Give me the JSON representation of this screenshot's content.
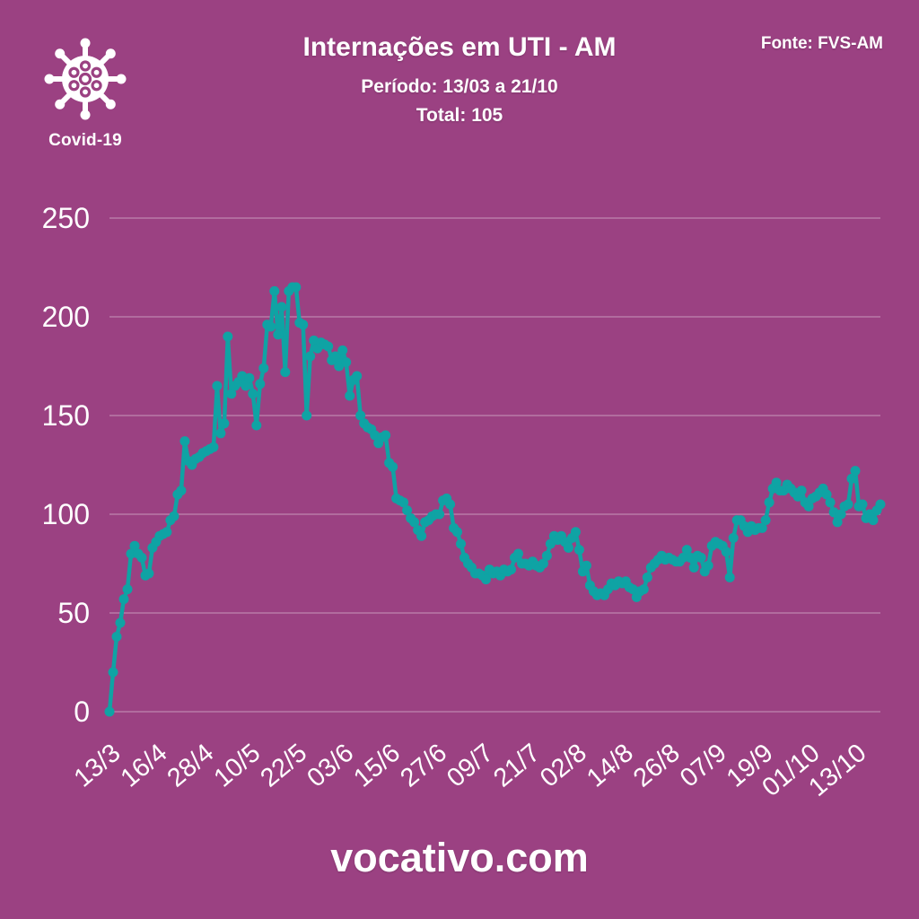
{
  "colors": {
    "background": "#9B4182",
    "line": "#0FA3A4",
    "grid": "rgba(255,255,255,0.3)",
    "text": "#FFFFFF"
  },
  "header": {
    "badge_label": "Covid-19",
    "title": "Internações em UTI - AM",
    "period": "Período: 13/03 a 21/10",
    "total": "Total: 105",
    "source": "Fonte: FVS-AM"
  },
  "footer": {
    "site": "vocativo.com"
  },
  "chart_data": {
    "type": "line",
    "title": "Internações em UTI - AM",
    "subtitle": "Período: 13/03 a 21/10",
    "total_label": "Total: 105",
    "source": "Fonte: FVS-AM",
    "series_name": "Internações em UTI - AM (diário)",
    "grid": true,
    "legend_position": "none",
    "ylim": [
      0,
      250
    ],
    "yticks": [
      0,
      50,
      100,
      150,
      200,
      250
    ],
    "x_tick_labels": [
      "13/3",
      "16/4",
      "28/4",
      "10/5",
      "22/5",
      "03/6",
      "15/6",
      "27/6",
      "09/7",
      "21/7",
      "02/8",
      "14/8",
      "26/8",
      "07/9",
      "19/9",
      "01/10",
      "13/10"
    ],
    "tick_interval_points": 13,
    "line_color": "#0FA3A4",
    "marker": "circle",
    "last_value": 105,
    "values": [
      0,
      20,
      38,
      45,
      57,
      62,
      80,
      84,
      80,
      78,
      69,
      70,
      83,
      86,
      89,
      90,
      91,
      97,
      99,
      110,
      112,
      137,
      127,
      125,
      128,
      129,
      131,
      132,
      133,
      134,
      165,
      141,
      146,
      190,
      161,
      165,
      167,
      170,
      165,
      169,
      161,
      145,
      166,
      174,
      196,
      195,
      213,
      191,
      205,
      172,
      213,
      215,
      215,
      197,
      196,
      150,
      180,
      188,
      184,
      187,
      186,
      185,
      178,
      180,
      175,
      183,
      177,
      160,
      168,
      170,
      150,
      146,
      144,
      143,
      140,
      136,
      139,
      140,
      126,
      124,
      108,
      107,
      106,
      102,
      98,
      96,
      92,
      89,
      96,
      97,
      99,
      100,
      100,
      107,
      108,
      105,
      93,
      91,
      85,
      78,
      75,
      73,
      70,
      70,
      69,
      67,
      72,
      70,
      71,
      69,
      72,
      71,
      72,
      78,
      80,
      75,
      75,
      74,
      76,
      74,
      73,
      75,
      79,
      85,
      89,
      87,
      89,
      86,
      83,
      88,
      91,
      82,
      71,
      74,
      64,
      61,
      59,
      60,
      59,
      62,
      65,
      64,
      66,
      65,
      66,
      63,
      62,
      58,
      61,
      62,
      68,
      73,
      75,
      77,
      79,
      77,
      78,
      77,
      76,
      76,
      78,
      82,
      78,
      73,
      79,
      78,
      71,
      74,
      84,
      86,
      85,
      84,
      81,
      68,
      88,
      97,
      97,
      94,
      91,
      94,
      92,
      93,
      93,
      97,
      106,
      113,
      116,
      112,
      112,
      115,
      113,
      111,
      109,
      112,
      106,
      104,
      108,
      109,
      111,
      113,
      110,
      106,
      101,
      96,
      100,
      104,
      105,
      118,
      122,
      104,
      105,
      98,
      100,
      97,
      102,
      105
    ]
  }
}
